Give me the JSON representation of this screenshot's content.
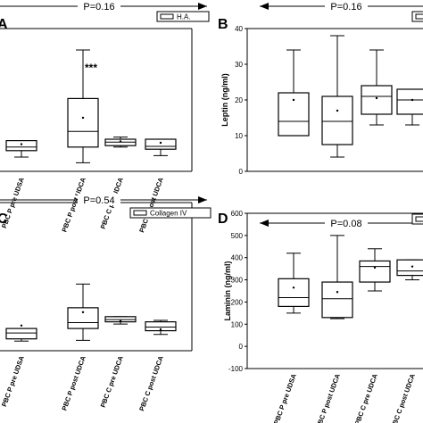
{
  "chart_data": [
    {
      "type": "box",
      "panel_letter": "A",
      "p_value": "P=0.16",
      "legend": "H.A.",
      "annotation": "***",
      "ylabel": "",
      "ylim": [
        0,
        200
      ],
      "yticks": [],
      "categories": [
        "PBC P pre UDSA",
        "PBC P post UDCA",
        "PBC C pre UDCA",
        "PBC C post UDCA"
      ],
      "boxes": [
        {
          "min": 20,
          "q1": 29,
          "median": 34,
          "q3": 43,
          "max": 43,
          "mean": 38
        },
        {
          "min": 12,
          "q1": 34,
          "median": 56,
          "q3": 102,
          "max": 170,
          "mean": 75
        },
        {
          "min": 34,
          "q1": 36,
          "median": 41,
          "q3": 45,
          "max": 48,
          "mean": 42
        },
        {
          "min": 22,
          "q1": 31,
          "median": 35,
          "q3": 45,
          "max": 45,
          "mean": 40
        }
      ]
    },
    {
      "type": "box",
      "panel_letter": "B",
      "p_value": "P=0.16",
      "legend": "",
      "ylabel": "Leptin (ng/ml)",
      "ylim": [
        0,
        40
      ],
      "yticks": [
        0,
        10,
        20,
        30,
        40
      ],
      "categories": [
        "",
        "",
        "",
        ""
      ],
      "boxes": [
        {
          "min": 10,
          "q1": 10,
          "median": 14,
          "q3": 22,
          "max": 34,
          "mean": 20
        },
        {
          "min": 4,
          "q1": 7.5,
          "median": 14,
          "q3": 21,
          "max": 38,
          "mean": 17
        },
        {
          "min": 13,
          "q1": 16,
          "median": 21,
          "q3": 24,
          "max": 34,
          "mean": 20.5
        },
        {
          "min": 13,
          "q1": 16,
          "median": 20,
          "q3": 23,
          "max": 23,
          "mean": 20
        }
      ]
    },
    {
      "type": "box",
      "panel_letter": "C",
      "p_value": "P=0.54",
      "legend": "Collagen IV",
      "ylabel": "",
      "ylim": [
        0,
        200
      ],
      "yticks": [],
      "categories": [
        "PBC P pre UDSA",
        "PBC P post UDCA",
        "PBC C pre UDCA",
        "PBC C post UDCA"
      ],
      "boxes": [
        {
          "min": 13,
          "q1": 16,
          "median": 24,
          "q3": 30,
          "max": 30,
          "mean": 34
        },
        {
          "min": 14,
          "q1": 30,
          "median": 38,
          "q3": 58,
          "max": 90,
          "mean": 52
        },
        {
          "min": 36,
          "q1": 39,
          "median": 42,
          "q3": 46,
          "max": 46,
          "mean": 40
        },
        {
          "min": 22,
          "q1": 27,
          "median": 32,
          "q3": 39,
          "max": 41,
          "mean": 29
        }
      ]
    },
    {
      "type": "box",
      "panel_letter": "D",
      "p_value": "P=0.08",
      "legend": "",
      "ylabel": "Laminin (ng/ml)",
      "ylim": [
        -100,
        600
      ],
      "yticks": [
        -100,
        0,
        100,
        200,
        300,
        400,
        500,
        600
      ],
      "categories": [
        "PBC P pre UDSA",
        "PBC P post UDCA",
        "PBC C pre UDCA",
        "PBC C post UDCA"
      ],
      "boxes": [
        {
          "min": 150,
          "q1": 180,
          "median": 220,
          "q3": 305,
          "max": 420,
          "mean": 265
        },
        {
          "min": 125,
          "q1": 130,
          "median": 215,
          "q3": 290,
          "max": 500,
          "mean": 245
        },
        {
          "min": 250,
          "q1": 290,
          "median": 360,
          "q3": 385,
          "max": 440,
          "mean": 355
        },
        {
          "min": 300,
          "q1": 320,
          "median": 340,
          "q3": 390,
          "max": 390,
          "mean": 360
        }
      ]
    }
  ]
}
